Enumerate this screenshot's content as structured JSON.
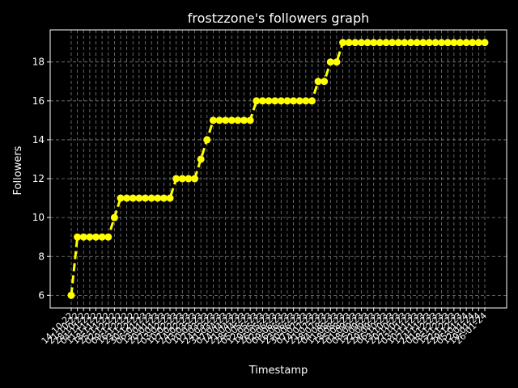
{
  "chart_data": {
    "type": "line",
    "title": "frostzzone's followers graph",
    "xlabel": "Timestamp",
    "ylabel": "Followers",
    "ylim": [
      5.35,
      19.65
    ],
    "yticks": [
      6,
      8,
      10,
      12,
      14,
      16,
      18
    ],
    "grid": true,
    "colors": {
      "background": "#000000",
      "axes": "#ffffff",
      "grid": "#808080",
      "series": "#ffff00"
    },
    "x": [
      "14-10-22",
      "21-10-22",
      "28-10-22",
      "04-11-22",
      "11-11-22",
      "18-11-22",
      "25-11-22",
      "02-12-22",
      "09-12-22",
      "16-12-22",
      "23-12-22",
      "30-12-22",
      "06-01-23",
      "13-01-23",
      "20-01-23",
      "27-01-23",
      "03-02-23",
      "10-02-23",
      "17-02-23",
      "24-02-23",
      "03-03-23",
      "10-03-23",
      "17-03-23",
      "24-03-23",
      "31-03-23",
      "07-04-23",
      "14-04-23",
      "21-04-23",
      "28-04-23",
      "05-05-23",
      "12-05-23",
      "19-05-23",
      "26-05-23",
      "02-06-23",
      "09-06-23",
      "16-06-23",
      "23-06-23",
      "30-06-23",
      "07-07-23",
      "14-07-23",
      "21-07-23",
      "28-07-23",
      "04-08-23",
      "11-08-23",
      "18-08-23",
      "25-08-23",
      "01-09-23",
      "08-09-23",
      "15-09-23",
      "22-09-23",
      "29-09-23",
      "06-10-23",
      "13-10-23",
      "20-10-23",
      "27-10-23",
      "03-11-23",
      "10-11-23",
      "17-11-23",
      "24-11-23",
      "01-12-23",
      "08-12-23",
      "15-12-23",
      "22-12-23",
      "29-12-23",
      "05-01-24",
      "12-01-24",
      "19-01-24",
      "26-01-24"
    ],
    "series": [
      {
        "values": [
          6,
          9,
          9,
          9,
          9,
          9,
          9,
          10,
          11,
          11,
          11,
          11,
          11,
          11,
          11,
          11,
          11,
          12,
          12,
          12,
          12,
          13,
          14,
          15,
          15,
          15,
          15,
          15,
          15,
          15,
          16,
          16,
          16,
          16,
          16,
          16,
          16,
          16,
          16,
          16,
          17,
          17,
          18,
          18,
          19,
          19,
          19,
          19,
          19,
          19,
          19,
          19,
          19,
          19,
          19,
          19,
          19,
          19,
          19,
          19,
          19,
          19,
          19,
          19,
          19,
          19,
          19,
          19
        ]
      }
    ]
  }
}
